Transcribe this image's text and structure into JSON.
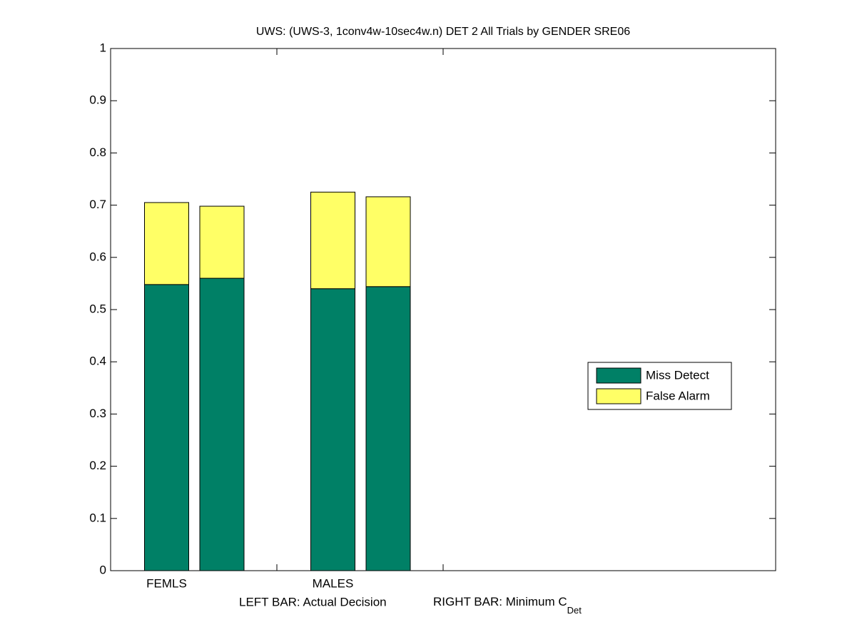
{
  "chart_data": {
    "type": "stacked_bar",
    "title": "UWS: (UWS-3, 1conv4w-10sec4w.n) DET 2 All Trials by GENDER SRE06",
    "xlabel": "LEFT BAR: Actual Decision",
    "xlabel_right": "RIGHT BAR: Minimum C",
    "xlabel_right_subscript": "Det",
    "categories": [
      "FEMLS",
      null,
      "MALES",
      null
    ],
    "series": [
      {
        "name": "Miss Detect",
        "color": "#008066",
        "values": [
          0.548,
          0.56,
          0.54,
          0.544
        ]
      },
      {
        "name": "False Alarm",
        "color": "#ffff66",
        "values": [
          0.157,
          0.138,
          0.185,
          0.172
        ]
      }
    ],
    "ylim": [
      0,
      1
    ],
    "yticks": [
      0,
      0.1,
      0.2,
      0.3,
      0.4,
      0.5,
      0.6,
      0.7,
      0.8,
      0.9,
      1
    ],
    "legend": "right"
  }
}
